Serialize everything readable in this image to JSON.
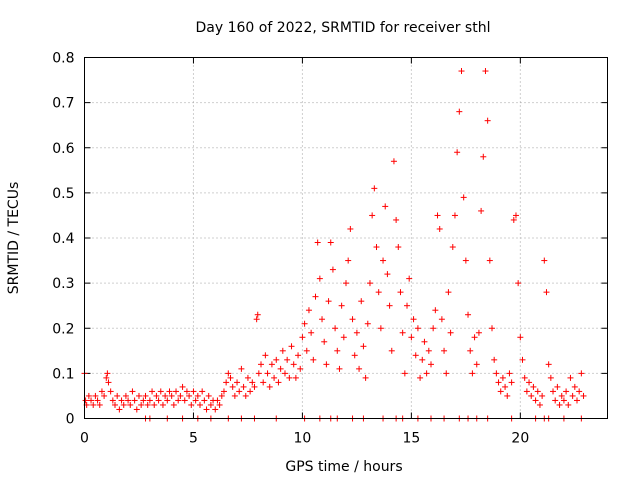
{
  "chart_data": {
    "type": "scatter",
    "title": "Day 160 of 2022, SRMTID for receiver sthl",
    "xlabel": "GPS time / hours",
    "ylabel": "SRMTID / TECUs",
    "xlim": [
      0,
      24
    ],
    "ylim": [
      0,
      0.8
    ],
    "xticks": [
      0,
      5,
      10,
      15,
      20
    ],
    "xtick_labels": [
      "0",
      "5",
      "10",
      "15",
      "20"
    ],
    "yticks": [
      0,
      0.1,
      0.2,
      0.3,
      0.4,
      0.5,
      0.6,
      0.7,
      0.8
    ],
    "ytick_labels": [
      "0",
      "0.1",
      "0.2",
      "0.3",
      "0.4",
      "0.5",
      "0.6",
      "0.7",
      "0.8"
    ],
    "grid": true,
    "marker": "+",
    "series": [
      {
        "name": "sthl",
        "color": "#ff0000",
        "points": [
          [
            0.0,
            0.1
          ],
          [
            0.05,
            0.04
          ],
          [
            0.1,
            0.03
          ],
          [
            0.2,
            0.05
          ],
          [
            0.3,
            0.04
          ],
          [
            0.4,
            0.03
          ],
          [
            0.5,
            0.05
          ],
          [
            0.6,
            0.04
          ],
          [
            0.7,
            0.03
          ],
          [
            0.8,
            0.06
          ],
          [
            0.9,
            0.05
          ],
          [
            1.0,
            0.09
          ],
          [
            1.05,
            0.1
          ],
          [
            1.1,
            0.08
          ],
          [
            1.2,
            0.06
          ],
          [
            1.3,
            0.04
          ],
          [
            1.4,
            0.03
          ],
          [
            1.5,
            0.05
          ],
          [
            1.6,
            0.02
          ],
          [
            1.7,
            0.04
          ],
          [
            1.8,
            0.03
          ],
          [
            1.9,
            0.05
          ],
          [
            2.0,
            0.04
          ],
          [
            2.1,
            0.03
          ],
          [
            2.2,
            0.06
          ],
          [
            2.3,
            0.04
          ],
          [
            2.4,
            0.02
          ],
          [
            2.5,
            0.05
          ],
          [
            2.6,
            0.03
          ],
          [
            2.7,
            0.04
          ],
          [
            2.8,
            0.05
          ],
          [
            2.9,
            0.03
          ],
          [
            3.0,
            0.04
          ],
          [
            3.1,
            0.06
          ],
          [
            3.2,
            0.03
          ],
          [
            3.3,
            0.05
          ],
          [
            3.4,
            0.04
          ],
          [
            3.5,
            0.06
          ],
          [
            3.6,
            0.03
          ],
          [
            3.7,
            0.05
          ],
          [
            3.8,
            0.04
          ],
          [
            3.9,
            0.06
          ],
          [
            4.0,
            0.05
          ],
          [
            4.1,
            0.03
          ],
          [
            4.2,
            0.06
          ],
          [
            4.3,
            0.04
          ],
          [
            4.4,
            0.05
          ],
          [
            4.5,
            0.07
          ],
          [
            4.6,
            0.04
          ],
          [
            4.7,
            0.06
          ],
          [
            4.8,
            0.05
          ],
          [
            4.9,
            0.03
          ],
          [
            5.0,
            0.06
          ],
          [
            5.1,
            0.04
          ],
          [
            5.2,
            0.05
          ],
          [
            5.3,
            0.03
          ],
          [
            5.4,
            0.06
          ],
          [
            5.5,
            0.04
          ],
          [
            5.6,
            0.02
          ],
          [
            5.7,
            0.05
          ],
          [
            5.8,
            0.03
          ],
          [
            5.9,
            0.04
          ],
          [
            6.0,
            0.02
          ],
          [
            6.1,
            0.04
          ],
          [
            6.2,
            0.03
          ],
          [
            6.3,
            0.05
          ],
          [
            6.4,
            0.06
          ],
          [
            6.5,
            0.08
          ],
          [
            6.6,
            0.1
          ],
          [
            6.7,
            0.09
          ],
          [
            6.8,
            0.07
          ],
          [
            6.9,
            0.05
          ],
          [
            7.0,
            0.08
          ],
          [
            7.1,
            0.06
          ],
          [
            7.2,
            0.11
          ],
          [
            7.3,
            0.07
          ],
          [
            7.4,
            0.05
          ],
          [
            7.5,
            0.09
          ],
          [
            7.6,
            0.06
          ],
          [
            7.7,
            0.08
          ],
          [
            7.8,
            0.07
          ],
          [
            7.9,
            0.22
          ],
          [
            7.95,
            0.23
          ],
          [
            8.0,
            0.1
          ],
          [
            8.1,
            0.12
          ],
          [
            8.2,
            0.08
          ],
          [
            8.3,
            0.14
          ],
          [
            8.4,
            0.1
          ],
          [
            8.5,
            0.07
          ],
          [
            8.6,
            0.12
          ],
          [
            8.7,
            0.09
          ],
          [
            8.8,
            0.13
          ],
          [
            8.9,
            0.08
          ],
          [
            9.0,
            0.11
          ],
          [
            9.1,
            0.15
          ],
          [
            9.2,
            0.1
          ],
          [
            9.3,
            0.13
          ],
          [
            9.4,
            0.09
          ],
          [
            9.5,
            0.16
          ],
          [
            9.6,
            0.12
          ],
          [
            9.7,
            0.09
          ],
          [
            9.8,
            0.14
          ],
          [
            9.9,
            0.11
          ],
          [
            10.0,
            0.18
          ],
          [
            10.1,
            0.21
          ],
          [
            10.2,
            0.15
          ],
          [
            10.3,
            0.24
          ],
          [
            10.4,
            0.19
          ],
          [
            10.5,
            0.13
          ],
          [
            10.6,
            0.27
          ],
          [
            10.7,
            0.39
          ],
          [
            10.8,
            0.31
          ],
          [
            10.9,
            0.22
          ],
          [
            11.0,
            0.17
          ],
          [
            11.1,
            0.12
          ],
          [
            11.2,
            0.26
          ],
          [
            11.3,
            0.39
          ],
          [
            11.4,
            0.33
          ],
          [
            11.5,
            0.2
          ],
          [
            11.6,
            0.15
          ],
          [
            11.7,
            0.11
          ],
          [
            11.8,
            0.25
          ],
          [
            11.9,
            0.18
          ],
          [
            12.0,
            0.3
          ],
          [
            12.1,
            0.35
          ],
          [
            12.2,
            0.42
          ],
          [
            12.3,
            0.22
          ],
          [
            12.4,
            0.14
          ],
          [
            12.5,
            0.19
          ],
          [
            12.6,
            0.11
          ],
          [
            12.7,
            0.26
          ],
          [
            12.8,
            0.16
          ],
          [
            12.9,
            0.09
          ],
          [
            13.0,
            0.21
          ],
          [
            13.1,
            0.3
          ],
          [
            13.2,
            0.45
          ],
          [
            13.3,
            0.51
          ],
          [
            13.4,
            0.38
          ],
          [
            13.5,
            0.28
          ],
          [
            13.6,
            0.2
          ],
          [
            13.7,
            0.35
          ],
          [
            13.8,
            0.47
          ],
          [
            13.9,
            0.32
          ],
          [
            14.0,
            0.25
          ],
          [
            14.1,
            0.15
          ],
          [
            14.2,
            0.57
          ],
          [
            14.3,
            0.44
          ],
          [
            14.4,
            0.38
          ],
          [
            14.5,
            0.28
          ],
          [
            14.6,
            0.19
          ],
          [
            14.7,
            0.1
          ],
          [
            14.8,
            0.25
          ],
          [
            14.9,
            0.31
          ],
          [
            15.0,
            0.18
          ],
          [
            15.1,
            0.22
          ],
          [
            15.2,
            0.14
          ],
          [
            15.3,
            0.2
          ],
          [
            15.4,
            0.09
          ],
          [
            15.5,
            0.13
          ],
          [
            15.6,
            0.17
          ],
          [
            15.7,
            0.1
          ],
          [
            15.8,
            0.15
          ],
          [
            15.9,
            0.12
          ],
          [
            16.0,
            0.2
          ],
          [
            16.1,
            0.24
          ],
          [
            16.2,
            0.45
          ],
          [
            16.3,
            0.42
          ],
          [
            16.4,
            0.22
          ],
          [
            16.5,
            0.15
          ],
          [
            16.6,
            0.1
          ],
          [
            16.7,
            0.28
          ],
          [
            16.8,
            0.19
          ],
          [
            16.9,
            0.38
          ],
          [
            17.0,
            0.45
          ],
          [
            17.1,
            0.59
          ],
          [
            17.2,
            0.68
          ],
          [
            17.3,
            0.77
          ],
          [
            17.4,
            0.49
          ],
          [
            17.5,
            0.35
          ],
          [
            17.6,
            0.23
          ],
          [
            17.7,
            0.15
          ],
          [
            17.8,
            0.1
          ],
          [
            17.9,
            0.18
          ],
          [
            18.0,
            0.12
          ],
          [
            18.1,
            0.19
          ],
          [
            18.2,
            0.46
          ],
          [
            18.3,
            0.58
          ],
          [
            18.4,
            0.77
          ],
          [
            18.5,
            0.66
          ],
          [
            18.6,
            0.35
          ],
          [
            18.7,
            0.2
          ],
          [
            18.8,
            0.13
          ],
          [
            18.9,
            0.1
          ],
          [
            19.0,
            0.08
          ],
          [
            19.1,
            0.06
          ],
          [
            19.2,
            0.09
          ],
          [
            19.3,
            0.07
          ],
          [
            19.4,
            0.05
          ],
          [
            19.5,
            0.1
          ],
          [
            19.6,
            0.08
          ],
          [
            19.7,
            0.44
          ],
          [
            19.8,
            0.45
          ],
          [
            19.9,
            0.3
          ],
          [
            20.0,
            0.18
          ],
          [
            20.1,
            0.13
          ],
          [
            20.2,
            0.09
          ],
          [
            20.3,
            0.06
          ],
          [
            20.4,
            0.08
          ],
          [
            20.5,
            0.05
          ],
          [
            20.6,
            0.07
          ],
          [
            20.7,
            0.04
          ],
          [
            20.8,
            0.06
          ],
          [
            20.9,
            0.03
          ],
          [
            21.0,
            0.05
          ],
          [
            21.1,
            0.35
          ],
          [
            21.2,
            0.28
          ],
          [
            21.3,
            0.12
          ],
          [
            21.4,
            0.09
          ],
          [
            21.5,
            0.06
          ],
          [
            21.6,
            0.04
          ],
          [
            21.7,
            0.07
          ],
          [
            21.8,
            0.03
          ],
          [
            21.9,
            0.05
          ],
          [
            22.0,
            0.04
          ],
          [
            22.1,
            0.06
          ],
          [
            22.2,
            0.03
          ],
          [
            22.3,
            0.09
          ],
          [
            22.4,
            0.05
          ],
          [
            22.5,
            0.07
          ],
          [
            22.6,
            0.04
          ],
          [
            22.7,
            0.06
          ],
          [
            22.8,
            0.1
          ],
          [
            22.9,
            0.05
          ]
        ]
      }
    ],
    "zero_ticks_x": [
      2.8,
      3.0,
      3.8,
      4.5,
      5.2,
      5.8,
      6.6,
      7.2,
      7.8,
      8.8,
      10.1,
      10.8,
      11.3,
      11.6,
      12.3,
      12.8,
      13.7,
      14.3,
      14.6,
      15.3,
      15.9,
      16.5,
      17.2,
      17.6,
      18.0,
      18.5,
      19.6,
      20.7,
      21.1,
      21.3,
      22.0,
      22.8
    ]
  }
}
